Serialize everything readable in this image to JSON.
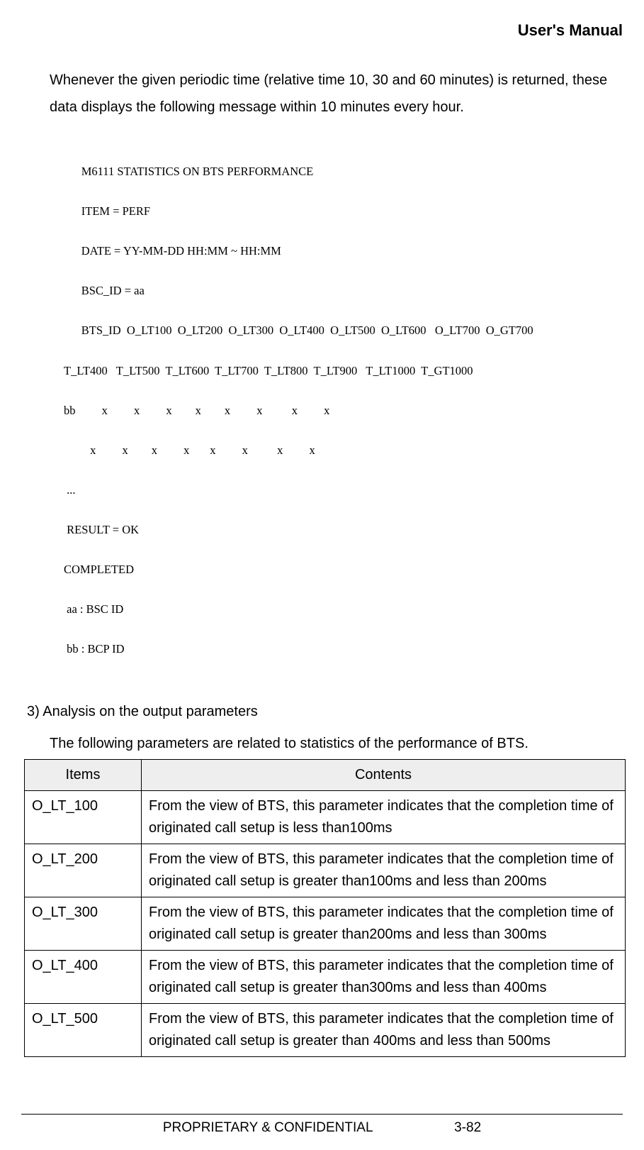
{
  "header": {
    "title": "User's Manual"
  },
  "intro": "Whenever the given periodic time (relative time 10, 30 and 60 minutes) is returned, these data displays the following message within 10 minutes every hour.",
  "stats": {
    "lines": [
      "      M6111 STATISTICS ON BTS PERFORMANCE",
      "      ITEM = PERF",
      "      DATE = YY-MM-DD HH:MM ~ HH:MM",
      "      BSC_ID = aa",
      "      BTS_ID  O_LT100  O_LT200  O_LT300  O_LT400  O_LT500  O_LT600   O_LT700  O_GT700",
      "T_LT400   T_LT500  T_LT600  T_LT700  T_LT800  T_LT900   T_LT1000  T_GT1000",
      "bb         x         x         x        x        x         x          x         x",
      "         x         x        x         x       x         x          x         x",
      " ...",
      " RESULT = OK",
      "COMPLETED",
      " aa : BSC ID",
      " bb : BCP ID"
    ]
  },
  "section": {
    "heading": "3) Analysis on the output parameters",
    "intro": "The following parameters are related to statistics of the performance of BTS."
  },
  "table": {
    "columns": [
      "Items",
      "Contents"
    ],
    "header_bg": "#eeeeee",
    "border_color": "#000000",
    "col_widths": [
      "165px",
      "auto"
    ],
    "rows": [
      [
        "O_LT_100",
        "From the view of BTS, this parameter indicates that the completion time of originated call setup is less than100ms"
      ],
      [
        "O_LT_200",
        "From the view of BTS, this parameter indicates that the completion time of originated call setup is greater than100ms and less than 200ms"
      ],
      [
        "O_LT_300",
        "From the view of BTS, this parameter indicates that the completion time of originated call setup is greater than200ms and less than 300ms"
      ],
      [
        "O_LT_400",
        "From the view of BTS, this parameter indicates that the completion time of originated call setup is greater than300ms and less than 400ms"
      ],
      [
        "O_LT_500",
        "From the view of BTS, this parameter indicates that the completion time of originated call setup is greater than 400ms and less than 500ms"
      ]
    ]
  },
  "footer": {
    "left": "PROPRIETARY & CONFIDENTIAL",
    "right": "3-82"
  },
  "colors": {
    "text": "#000000",
    "background": "#ffffff"
  }
}
